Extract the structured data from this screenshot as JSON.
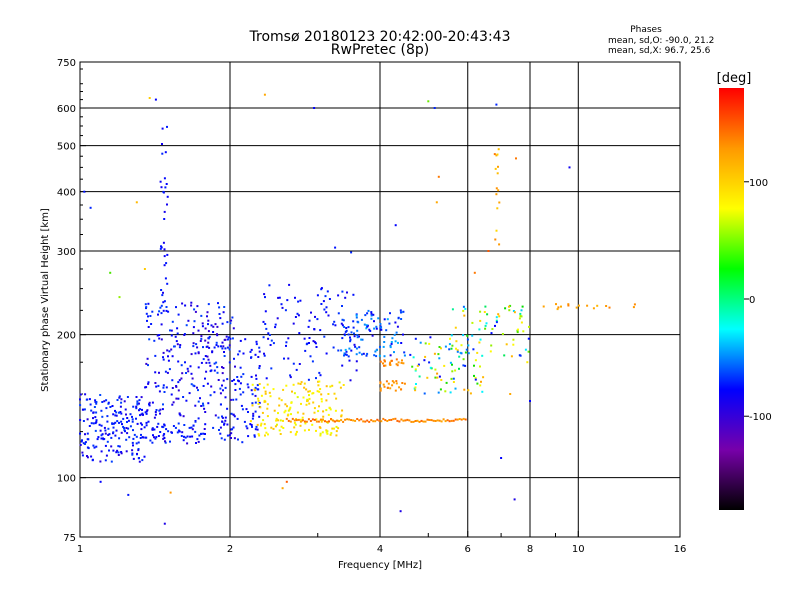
{
  "chart_data": {
    "type": "scatter",
    "title": "Tromsø 20180123 20:42:00-20:43:43",
    "subtitle": "RwPretec (8p)",
    "stats": {
      "heading": "Phases",
      "line_o": "mean, sd,O: -90.0, 21.2",
      "line_x": "mean, sd,X:  96.7, 25.6"
    },
    "xlabel": "Frequency [MHz]",
    "ylabel": "Stationary phase Virtual Height [km]",
    "x_scale": "log",
    "y_scale": "log",
    "xlim": [
      1,
      16
    ],
    "ylim": [
      75,
      750
    ],
    "x_ticks": [
      {
        "v": 1,
        "label": "1"
      },
      {
        "v": 2,
        "label": "2"
      },
      {
        "v": 4,
        "label": "4"
      },
      {
        "v": 6,
        "label": "6"
      },
      {
        "v": 8,
        "label": "8"
      },
      {
        "v": 10,
        "label": "10"
      },
      {
        "v": 16,
        "label": "16"
      }
    ],
    "x_grid": [
      2,
      4,
      6,
      8,
      10
    ],
    "x_minor": [
      3,
      5,
      7,
      9
    ],
    "y_ticks": [
      {
        "v": 75,
        "label": "75"
      },
      {
        "v": 100,
        "label": "100"
      },
      {
        "v": 200,
        "label": "200"
      },
      {
        "v": 300,
        "label": "300"
      },
      {
        "v": 400,
        "label": "400"
      },
      {
        "v": 500,
        "label": "500"
      },
      {
        "v": 600,
        "label": "600"
      },
      {
        "v": 750,
        "label": "750"
      }
    ],
    "y_grid": [
      100,
      200,
      300,
      400,
      500,
      600
    ],
    "grid": true,
    "colorbar": {
      "label": "[deg]",
      "range": [
        -180,
        180
      ],
      "ticks": [
        {
          "v": 100,
          "label": "100"
        },
        {
          "v": 0,
          "label": "0"
        },
        {
          "v": -100,
          "label": "-100"
        }
      ],
      "stops": [
        "#ff0000",
        "#ff9900",
        "#ffff00",
        "#00ff00",
        "#00ffff",
        "#0000ff",
        "#7700aa",
        "#000000"
      ]
    },
    "clusters": [
      {
        "f": [
          1.0,
          1.35
        ],
        "h": [
          108,
          150
        ],
        "phase": [
          -115,
          -80
        ],
        "n": 170
      },
      {
        "f": [
          1.35,
          2.05
        ],
        "h": [
          118,
          235
        ],
        "phase": [
          -120,
          -80
        ],
        "n": 330
      },
      {
        "f": [
          2.05,
          2.3
        ],
        "h": [
          118,
          200
        ],
        "phase": [
          -110,
          -85
        ],
        "n": 70
      },
      {
        "f": [
          2.2,
          3.4
        ],
        "h": [
          122,
          160
        ],
        "phase": [
          60,
          110
        ],
        "n": 170
      },
      {
        "f": [
          2.3,
          3.6
        ],
        "h": [
          160,
          255
        ],
        "phase": [
          -110,
          -85
        ],
        "n": 110
      },
      {
        "f": [
          3.3,
          4.5
        ],
        "h": [
          180,
          225
        ],
        "phase": [
          -110,
          -50
        ],
        "n": 110
      },
      {
        "f": [
          4.0,
          4.5
        ],
        "h": [
          152,
          160
        ],
        "phase": [
          120,
          140
        ],
        "n": 22
      },
      {
        "f": [
          4.0,
          4.5
        ],
        "h": [
          172,
          178
        ],
        "phase": [
          125,
          145
        ],
        "n": 18
      },
      {
        "f": [
          4.6,
          6.5
        ],
        "h": [
          150,
          200
        ],
        "phase": [
          -105,
          130
        ],
        "n": 80
      },
      {
        "f": [
          5.5,
          8.0
        ],
        "h": [
          180,
          230
        ],
        "phase": [
          -100,
          120
        ],
        "n": 70
      },
      {
        "f": [
          1.45,
          1.5
        ],
        "h": [
          220,
          550
        ],
        "phase": [
          -110,
          -90
        ],
        "n": 35
      },
      {
        "f": [
          6.8,
          6.95
        ],
        "h": [
          300,
          500
        ],
        "phase": [
          90,
          140
        ],
        "n": 14
      }
    ],
    "lines": [
      {
        "f": [
          1.0,
          1.8
        ],
        "h": [
          118,
          132
        ],
        "phase": [
          -100,
          -85
        ],
        "n": 65
      },
      {
        "f": [
          2.6,
          6.0
        ],
        "h": [
          131,
          133
        ],
        "phase": [
          120,
          150
        ],
        "n": 90
      }
    ],
    "bands": [
      {
        "f": [
          8.1,
          13.0
        ],
        "h": [
          226,
          232
        ],
        "phase": [
          110,
          140
        ],
        "n": 16
      }
    ],
    "scattered": [
      [
        1.05,
        370,
        -90
      ],
      [
        1.02,
        400,
        -95
      ],
      [
        1.1,
        98,
        -100
      ],
      [
        1.25,
        92,
        -95
      ],
      [
        1.3,
        380,
        110
      ],
      [
        1.38,
        630,
        100
      ],
      [
        1.42,
        625,
        -100
      ],
      [
        1.48,
        80,
        -110
      ],
      [
        1.52,
        93,
        130
      ],
      [
        1.15,
        270,
        20
      ],
      [
        1.2,
        240,
        40
      ],
      [
        1.35,
        275,
        100
      ],
      [
        2.35,
        640,
        120
      ],
      [
        2.55,
        95,
        120
      ],
      [
        2.6,
        98,
        150
      ],
      [
        2.95,
        600,
        -100
      ],
      [
        3.25,
        305,
        -95
      ],
      [
        3.5,
        298,
        -90
      ],
      [
        4.3,
        340,
        -100
      ],
      [
        4.4,
        85,
        -110
      ],
      [
        5.0,
        620,
        30
      ],
      [
        5.15,
        600,
        -90
      ],
      [
        5.25,
        430,
        140
      ],
      [
        5.2,
        380,
        120
      ],
      [
        6.85,
        610,
        -90
      ],
      [
        6.8,
        480,
        140
      ],
      [
        7.5,
        470,
        140
      ],
      [
        7.45,
        90,
        -110
      ],
      [
        9.6,
        450,
        -105
      ],
      [
        6.6,
        300,
        150
      ],
      [
        7.0,
        110,
        -100
      ],
      [
        8.0,
        145,
        -100
      ],
      [
        7.9,
        175,
        80
      ],
      [
        7.3,
        150,
        120
      ],
      [
        6.2,
        270,
        140
      ]
    ]
  }
}
